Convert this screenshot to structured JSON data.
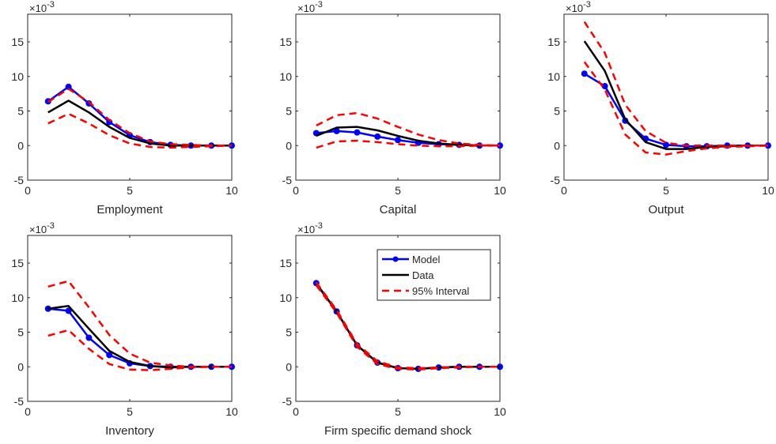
{
  "chart_data": [
    {
      "type": "line",
      "title": "",
      "xlabel": "Employment",
      "ylabel": "",
      "y_multiplier_label": "×10",
      "y_multiplier_exponent": "-3",
      "xlim": [
        0,
        10
      ],
      "ylim": [
        -5,
        19
      ],
      "xticks": [
        0,
        5,
        10
      ],
      "yticks": [
        -5,
        0,
        5,
        10,
        15
      ],
      "x": [
        1,
        2,
        3,
        4,
        5,
        6,
        7,
        8,
        9,
        10
      ],
      "series": [
        {
          "name": "Model",
          "color": "#0000ff",
          "style": "line-marker",
          "values": [
            6.4,
            8.5,
            6.1,
            3.4,
            1.5,
            0.5,
            0.1,
            0.0,
            0.0,
            0.0
          ]
        },
        {
          "name": "Data",
          "color": "#000000",
          "style": "line",
          "values": [
            4.8,
            6.5,
            4.8,
            2.7,
            1.1,
            0.3,
            0.0,
            0.0,
            0.0,
            0.0
          ]
        },
        {
          "name": "95% Interval",
          "color": "#ff0000",
          "style": "dashed",
          "values": [
            6.3,
            8.2,
            6.3,
            3.7,
            1.8,
            0.6,
            0.2,
            0.1,
            0.0,
            0.0
          ]
        },
        {
          "name": "95% Interval",
          "color": "#ff0000",
          "style": "dashed",
          "values": [
            3.2,
            4.6,
            3.2,
            1.5,
            0.3,
            -0.2,
            -0.3,
            -0.2,
            -0.1,
            0.0
          ]
        }
      ]
    },
    {
      "type": "line",
      "title": "",
      "xlabel": "Capital",
      "ylabel": "",
      "y_multiplier_label": "×10",
      "y_multiplier_exponent": "-3",
      "xlim": [
        0,
        10
      ],
      "ylim": [
        -5,
        19
      ],
      "xticks": [
        0,
        5,
        10
      ],
      "yticks": [
        -5,
        0,
        5,
        10,
        15
      ],
      "x": [
        1,
        2,
        3,
        4,
        5,
        6,
        7,
        8,
        9,
        10
      ],
      "series": [
        {
          "name": "Model",
          "color": "#0000ff",
          "style": "line-marker",
          "values": [
            1.8,
            2.1,
            1.9,
            1.3,
            0.8,
            0.4,
            0.2,
            0.1,
            0.0,
            0.0
          ]
        },
        {
          "name": "Data",
          "color": "#000000",
          "style": "line",
          "values": [
            1.4,
            2.6,
            2.7,
            2.2,
            1.4,
            0.7,
            0.3,
            0.1,
            0.0,
            0.0
          ]
        },
        {
          "name": "95% Interval",
          "color": "#ff0000",
          "style": "dashed",
          "values": [
            2.9,
            4.4,
            4.7,
            3.9,
            2.7,
            1.6,
            0.8,
            0.3,
            0.1,
            0.0
          ]
        },
        {
          "name": "95% Interval",
          "color": "#ff0000",
          "style": "dashed",
          "values": [
            -0.3,
            0.6,
            0.7,
            0.5,
            0.2,
            0.0,
            -0.1,
            -0.1,
            0.0,
            0.0
          ]
        }
      ]
    },
    {
      "type": "line",
      "title": "",
      "xlabel": "Output",
      "ylabel": "",
      "y_multiplier_label": "×10",
      "y_multiplier_exponent": "-3",
      "xlim": [
        0,
        10
      ],
      "ylim": [
        -5,
        19
      ],
      "xticks": [
        0,
        5,
        10
      ],
      "yticks": [
        -5,
        0,
        5,
        10,
        15
      ],
      "x": [
        1,
        2,
        3,
        4,
        5,
        6,
        7,
        8,
        9,
        10
      ],
      "series": [
        {
          "name": "Model",
          "color": "#0000ff",
          "style": "line-marker",
          "values": [
            10.4,
            8.6,
            3.6,
            1.0,
            0.1,
            -0.1,
            -0.1,
            0.0,
            0.0,
            0.0
          ]
        },
        {
          "name": "Data",
          "color": "#000000",
          "style": "line",
          "values": [
            15.1,
            10.8,
            3.8,
            0.5,
            -0.5,
            -0.5,
            -0.2,
            -0.1,
            0.0,
            0.0
          ]
        },
        {
          "name": "95% Interval",
          "color": "#ff0000",
          "style": "dashed",
          "values": [
            17.9,
            13.4,
            5.9,
            2.1,
            0.4,
            0.0,
            0.0,
            0.0,
            0.0,
            0.0
          ]
        },
        {
          "name": "95% Interval",
          "color": "#ff0000",
          "style": "dashed",
          "values": [
            12.1,
            8.1,
            1.6,
            -1.0,
            -1.3,
            -0.8,
            -0.4,
            -0.2,
            -0.1,
            0.0
          ]
        }
      ]
    },
    {
      "type": "line",
      "title": "",
      "xlabel": "Inventory",
      "ylabel": "",
      "y_multiplier_label": "×10",
      "y_multiplier_exponent": "-3",
      "xlim": [
        0,
        10
      ],
      "ylim": [
        -5,
        19
      ],
      "xticks": [
        0,
        5,
        10
      ],
      "yticks": [
        -5,
        0,
        5,
        10,
        15
      ],
      "x": [
        1,
        2,
        3,
        4,
        5,
        6,
        7,
        8,
        9,
        10
      ],
      "series": [
        {
          "name": "Model",
          "color": "#0000ff",
          "style": "line-marker",
          "values": [
            8.4,
            8.1,
            4.2,
            1.7,
            0.5,
            0.1,
            0.0,
            0.0,
            0.0,
            0.0
          ]
        },
        {
          "name": "Data",
          "color": "#000000",
          "style": "line",
          "values": [
            8.4,
            8.8,
            5.5,
            2.3,
            0.7,
            0.1,
            -0.1,
            0.0,
            0.0,
            0.0
          ]
        },
        {
          "name": "95% Interval",
          "color": "#ff0000",
          "style": "dashed",
          "values": [
            11.6,
            12.4,
            8.6,
            4.6,
            1.9,
            0.6,
            0.2,
            0.0,
            0.0,
            0.0
          ]
        },
        {
          "name": "95% Interval",
          "color": "#ff0000",
          "style": "dashed",
          "values": [
            4.5,
            5.3,
            2.6,
            0.4,
            -0.4,
            -0.5,
            -0.3,
            -0.1,
            0.0,
            0.0
          ]
        }
      ]
    },
    {
      "type": "line",
      "title": "",
      "xlabel": "Firm specific demand shock",
      "ylabel": "",
      "y_multiplier_label": "×10",
      "y_multiplier_exponent": "-3",
      "xlim": [
        0,
        10
      ],
      "ylim": [
        -5,
        19
      ],
      "xticks": [
        0,
        5,
        10
      ],
      "yticks": [
        -5,
        0,
        5,
        10,
        15
      ],
      "x": [
        1,
        2,
        3,
        4,
        5,
        6,
        7,
        8,
        9,
        10
      ],
      "legend": {
        "placement": "top-right",
        "entries": [
          "Model",
          "Data",
          "95% Interval"
        ]
      },
      "series": [
        {
          "name": "Model",
          "color": "#0000ff",
          "style": "line-marker",
          "values": [
            12.1,
            8.0,
            3.1,
            0.6,
            -0.2,
            -0.3,
            -0.1,
            0.0,
            0.0,
            0.0
          ]
        },
        {
          "name": "Data",
          "color": "#000000",
          "style": "line",
          "values": [
            12.0,
            8.0,
            3.1,
            0.6,
            -0.2,
            -0.3,
            -0.1,
            0.0,
            0.0,
            0.0
          ]
        },
        {
          "name": "95% Interval",
          "color": "#ff0000",
          "style": "dashed",
          "values": [
            12.2,
            8.2,
            3.3,
            0.8,
            -0.1,
            -0.2,
            -0.1,
            0.0,
            0.0,
            0.0
          ]
        },
        {
          "name": "95% Interval",
          "color": "#ff0000",
          "style": "dashed",
          "values": [
            11.8,
            7.8,
            2.9,
            0.4,
            -0.3,
            -0.4,
            -0.2,
            -0.1,
            0.0,
            0.0
          ]
        }
      ]
    }
  ]
}
